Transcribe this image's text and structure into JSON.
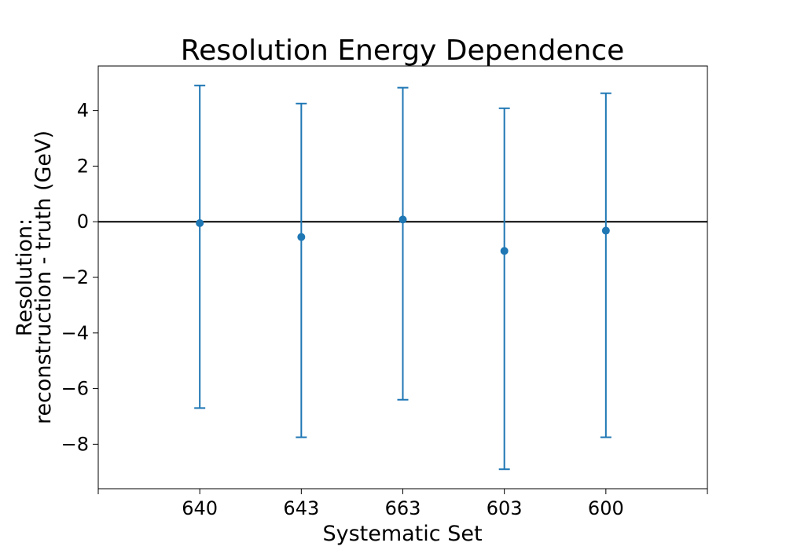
{
  "chart_data": {
    "type": "scatter",
    "title": "Resolution Energy Dependence",
    "xlabel": "Systematic Set",
    "ylabel_lines": [
      "Resolution:",
      "reconstruction - truth (GeV)"
    ],
    "categories": [
      "640",
      "643",
      "663",
      "603",
      "600"
    ],
    "values": [
      -0.05,
      -0.55,
      0.08,
      -1.05,
      -0.32
    ],
    "err_low": [
      -6.7,
      -7.75,
      -6.4,
      -8.9,
      -7.75
    ],
    "err_high": [
      4.9,
      4.25,
      4.82,
      4.08,
      4.62
    ],
    "ylim": [
      -9.6,
      5.6
    ],
    "yticks": [
      4,
      2,
      0,
      -2,
      -4,
      -6,
      -8
    ],
    "ytick_labels": [
      "4",
      "2",
      "0",
      "−2",
      "−4",
      "−6",
      "−8"
    ],
    "reference_line": 0,
    "color": "#1f77b4",
    "grid": false,
    "legend": "none"
  }
}
